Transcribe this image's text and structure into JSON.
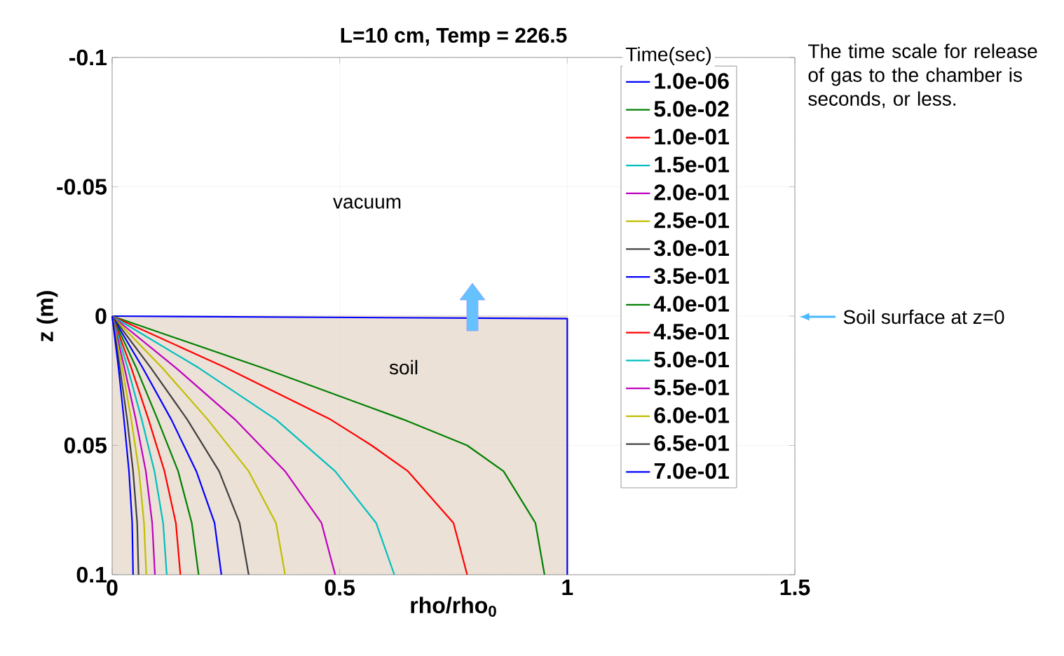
{
  "chart_data": {
    "type": "line",
    "title": "L=10 cm, Temp = 226.5",
    "xlabel": "rho/rho$_{0}$",
    "ylabel": "z (m)",
    "legend_title": "Time(sec)",
    "xlim": [
      0,
      1.5
    ],
    "ylim": [
      0.1,
      -0.1
    ],
    "xticks": [
      0,
      0.5,
      1,
      1.5
    ],
    "yticks": [
      -0.1,
      -0.05,
      0,
      0.05,
      0.1
    ],
    "grid": true,
    "legend": "top right",
    "annotations": [
      "vacuum",
      "soil",
      "The time scale for release of gas to the chamber is seconds, or less.",
      "Soil surface at z=0"
    ],
    "series": [
      {
        "name": "1.0e-06",
        "color": "#0000ff",
        "x": [
          0,
          1,
          1
        ],
        "values": [
          0,
          0.001,
          0.1
        ]
      },
      {
        "name": "5.0e-02",
        "color": "#008000",
        "x": [
          0,
          0.33,
          0.64,
          0.78,
          0.86,
          0.93,
          0.95
        ],
        "values": [
          0,
          0.02,
          0.04,
          0.05,
          0.06,
          0.08,
          0.1
        ]
      },
      {
        "name": "1.0e-01",
        "color": "#ff0000",
        "x": [
          0,
          0.25,
          0.48,
          0.57,
          0.65,
          0.75,
          0.78
        ],
        "values": [
          0,
          0.02,
          0.04,
          0.05,
          0.06,
          0.08,
          0.1
        ]
      },
      {
        "name": "1.5e-01",
        "color": "#00bfbf",
        "x": [
          0,
          0.19,
          0.36,
          0.49,
          0.58,
          0.62
        ],
        "values": [
          0,
          0.02,
          0.04,
          0.06,
          0.08,
          0.1
        ]
      },
      {
        "name": "2.0e-01",
        "color": "#bf00bf",
        "x": [
          0,
          0.14,
          0.27,
          0.38,
          0.46,
          0.49
        ],
        "values": [
          0,
          0.02,
          0.04,
          0.06,
          0.08,
          0.1
        ]
      },
      {
        "name": "2.5e-01",
        "color": "#bfbf00",
        "x": [
          0,
          0.11,
          0.21,
          0.3,
          0.36,
          0.38
        ],
        "values": [
          0,
          0.02,
          0.04,
          0.06,
          0.08,
          0.1
        ]
      },
      {
        "name": "3.0e-01",
        "color": "#404040",
        "x": [
          0,
          0.085,
          0.165,
          0.235,
          0.28,
          0.3
        ],
        "values": [
          0,
          0.02,
          0.04,
          0.06,
          0.08,
          0.1
        ]
      },
      {
        "name": "3.5e-01",
        "color": "#0000ff",
        "x": [
          0,
          0.067,
          0.13,
          0.185,
          0.225,
          0.24
        ],
        "values": [
          0,
          0.02,
          0.04,
          0.06,
          0.08,
          0.1
        ]
      },
      {
        "name": "4.0e-01",
        "color": "#008000",
        "x": [
          0,
          0.053,
          0.1,
          0.145,
          0.175,
          0.19
        ],
        "values": [
          0,
          0.02,
          0.04,
          0.06,
          0.08,
          0.1
        ]
      },
      {
        "name": "4.5e-01",
        "color": "#ff0000",
        "x": [
          0,
          0.042,
          0.08,
          0.115,
          0.14,
          0.15
        ],
        "values": [
          0,
          0.02,
          0.04,
          0.06,
          0.08,
          0.1
        ]
      },
      {
        "name": "5.0e-01",
        "color": "#00bfbf",
        "x": [
          0,
          0.034,
          0.065,
          0.093,
          0.112,
          0.12
        ],
        "values": [
          0,
          0.02,
          0.04,
          0.06,
          0.08,
          0.1
        ]
      },
      {
        "name": "5.5e-01",
        "color": "#bf00bf",
        "x": [
          0,
          0.027,
          0.052,
          0.074,
          0.088,
          0.094
        ],
        "values": [
          0,
          0.02,
          0.04,
          0.06,
          0.08,
          0.1
        ]
      },
      {
        "name": "6.0e-01",
        "color": "#bfbf00",
        "x": [
          0,
          0.022,
          0.042,
          0.059,
          0.07,
          0.075
        ],
        "values": [
          0,
          0.02,
          0.04,
          0.06,
          0.08,
          0.1
        ]
      },
      {
        "name": "6.5e-01",
        "color": "#404040",
        "x": [
          0,
          0.017,
          0.033,
          0.046,
          0.055,
          0.058
        ],
        "values": [
          0,
          0.02,
          0.04,
          0.06,
          0.08,
          0.1
        ]
      },
      {
        "name": "7.0e-01",
        "color": "#0000ff",
        "x": [
          0,
          0.014,
          0.026,
          0.037,
          0.044,
          0.046
        ],
        "values": [
          0,
          0.02,
          0.04,
          0.06,
          0.08,
          0.1
        ]
      }
    ]
  }
}
